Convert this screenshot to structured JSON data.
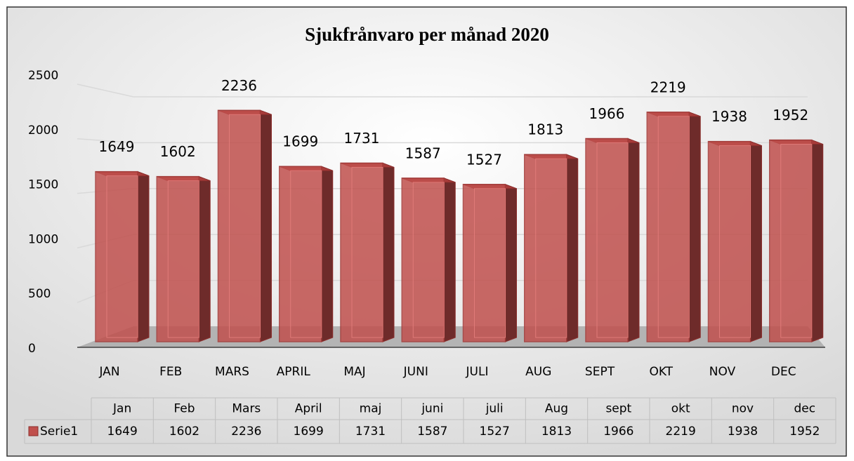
{
  "chart_data": {
    "type": "bar3d",
    "title": "Sjukfrånvaro per månad 2020",
    "categories": [
      "JAN",
      "FEB",
      "MARS",
      "APRIL",
      "MAJ",
      "JUNI",
      "JULI",
      "AUG",
      "SEPT",
      "OKT",
      "NOV",
      "DEC"
    ],
    "series": [
      {
        "name": "Serie1",
        "color": "#c0504d",
        "values": [
          1649,
          1602,
          2236,
          1699,
          1731,
          1587,
          1527,
          1813,
          1966,
          2219,
          1938,
          1952
        ]
      }
    ],
    "table_columns": [
      "Jan",
      "Feb",
      "Mars",
      "April",
      "maj",
      "juni",
      "juli",
      "Aug",
      "sept",
      "okt",
      "nov",
      "dec"
    ],
    "ylim": [
      0,
      2500
    ],
    "yticks": [
      0,
      500,
      1000,
      1500,
      2000,
      2500
    ],
    "grid": true,
    "data_labels": true,
    "data_table": true
  }
}
